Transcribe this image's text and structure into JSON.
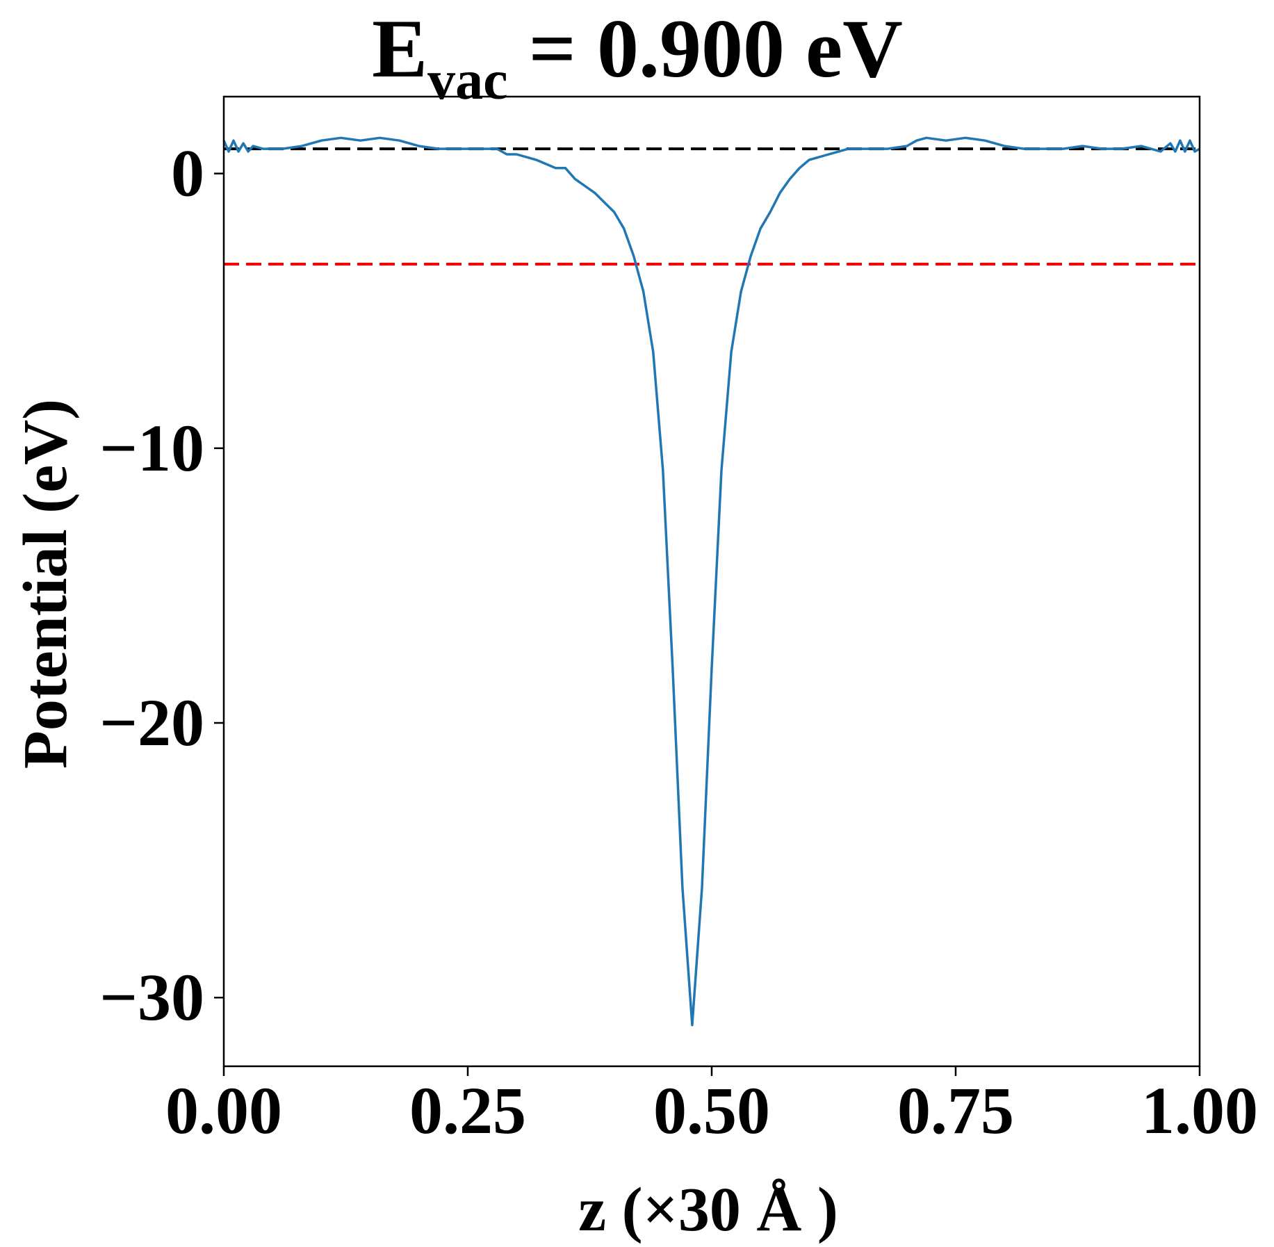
{
  "chart_data": {
    "type": "line",
    "title": {
      "main": "E",
      "subscript": "vac",
      "rest": " = 0.900 eV"
    },
    "xlabel": "z (×30 Å )",
    "ylabel": "Potential (eV)",
    "xlim": [
      0.0,
      1.0
    ],
    "ylim": [
      -32.5,
      2.8
    ],
    "x_ticks": [
      0.0,
      0.25,
      0.5,
      0.75,
      1.0
    ],
    "x_tick_labels": [
      "0.00",
      "0.25",
      "0.50",
      "0.75",
      "1.00"
    ],
    "y_ticks": [
      0,
      -10,
      -20,
      -30
    ],
    "y_tick_labels": [
      "0",
      "−10",
      "−20",
      "−30"
    ],
    "grid": false,
    "series": [
      {
        "color": "#1f77b4",
        "x": [
          0.0,
          0.005,
          0.01,
          0.015,
          0.02,
          0.025,
          0.03,
          0.04,
          0.06,
          0.08,
          0.1,
          0.12,
          0.14,
          0.16,
          0.18,
          0.2,
          0.22,
          0.24,
          0.26,
          0.28,
          0.29,
          0.3,
          0.32,
          0.34,
          0.35,
          0.36,
          0.38,
          0.4,
          0.41,
          0.42,
          0.43,
          0.44,
          0.45,
          0.46,
          0.47,
          0.48,
          0.49,
          0.5,
          0.51,
          0.52,
          0.53,
          0.54,
          0.55,
          0.56,
          0.57,
          0.58,
          0.59,
          0.6,
          0.62,
          0.64,
          0.65,
          0.66,
          0.68,
          0.7,
          0.71,
          0.72,
          0.74,
          0.76,
          0.78,
          0.8,
          0.82,
          0.84,
          0.86,
          0.88,
          0.9,
          0.92,
          0.94,
          0.96,
          0.97,
          0.975,
          0.98,
          0.985,
          0.99,
          0.995,
          1.0
        ],
        "y": [
          1.2,
          0.8,
          1.2,
          0.8,
          1.1,
          0.8,
          1.0,
          0.9,
          0.9,
          1.0,
          1.2,
          1.3,
          1.2,
          1.3,
          1.2,
          1.0,
          0.9,
          0.9,
          0.9,
          0.9,
          0.7,
          0.7,
          0.5,
          0.2,
          0.2,
          -0.2,
          -0.7,
          -1.4,
          -2.0,
          -3.0,
          -4.3,
          -6.5,
          -10.8,
          -18.0,
          -26.0,
          -31.0,
          -26.0,
          -18.0,
          -10.8,
          -6.5,
          -4.3,
          -3.0,
          -2.0,
          -1.4,
          -0.7,
          -0.2,
          0.2,
          0.5,
          0.7,
          0.9,
          0.9,
          0.9,
          0.9,
          1.0,
          1.2,
          1.3,
          1.2,
          1.3,
          1.2,
          1.0,
          0.9,
          0.9,
          0.9,
          1.0,
          0.9,
          0.9,
          1.0,
          0.8,
          1.1,
          0.8,
          1.2,
          0.8,
          1.2,
          0.8,
          0.9
        ]
      }
    ],
    "reference_lines": [
      {
        "y": 0.9,
        "color": "#000000",
        "style": "dashed"
      },
      {
        "y": -3.3,
        "color": "#ff0000",
        "style": "dashed"
      }
    ]
  }
}
